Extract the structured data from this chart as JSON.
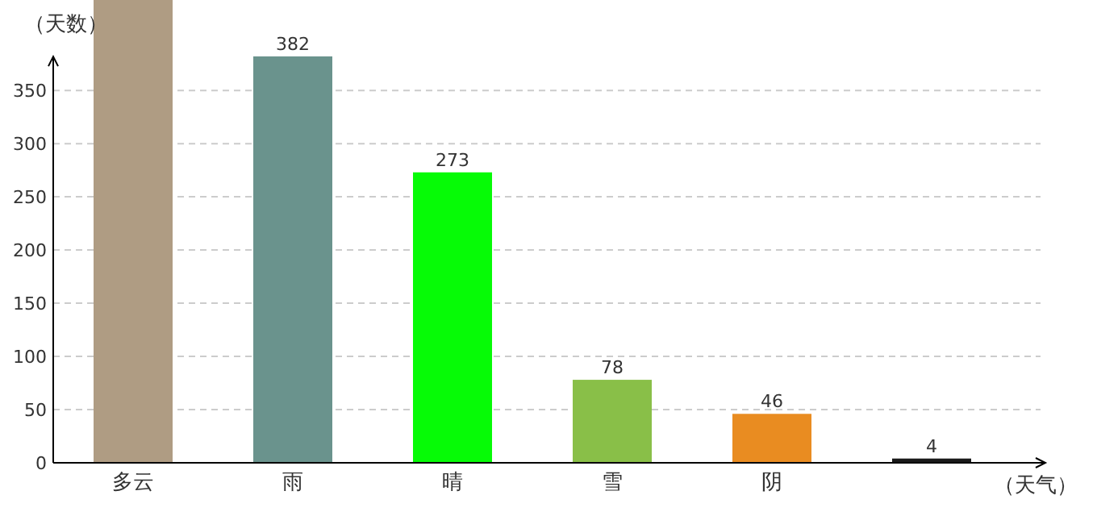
{
  "chart_data": {
    "type": "bar",
    "xlabel": "（天气）",
    "ylabel": "（天数）",
    "categories": [
      "多云",
      "雨",
      "晴",
      "雪",
      "阴",
      null
    ],
    "values": [
      435,
      382,
      273,
      78,
      46,
      4
    ],
    "colors": [
      "#af9c83",
      "#6a938d",
      "#06fb06",
      "#89bf48",
      "#e98c21",
      "#1a1a1a"
    ],
    "value_labels": [
      null,
      "382",
      "273",
      "78",
      "46",
      "4"
    ],
    "ylim": [
      0,
      435
    ],
    "yticks": [
      0,
      50,
      100,
      150,
      200,
      250,
      300,
      350
    ],
    "grid": "y"
  }
}
